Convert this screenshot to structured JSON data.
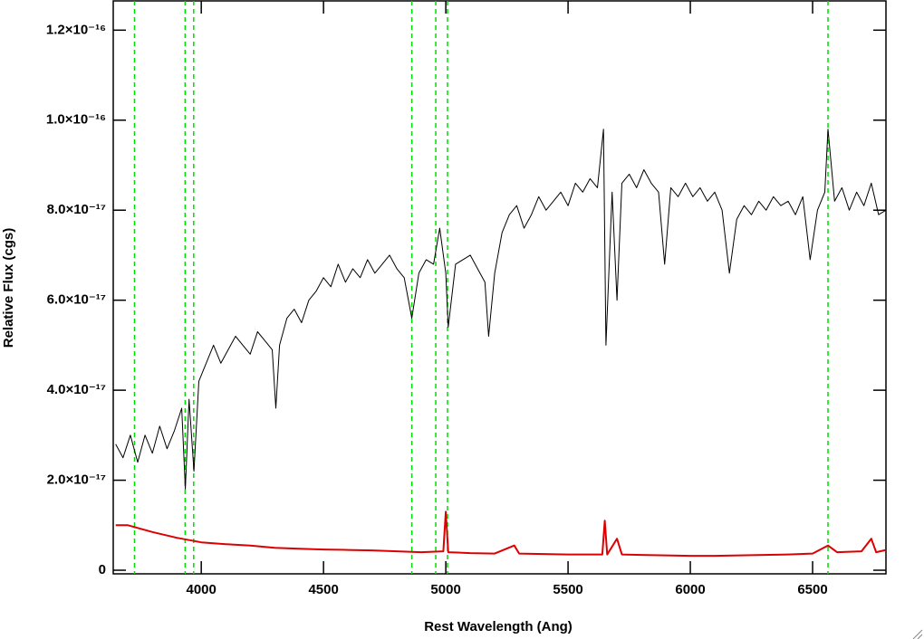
{
  "chart_data": {
    "type": "line",
    "x_label": "Rest Wavelength (Ang)",
    "y_label": "Relative Flux (cgs)",
    "xlim": [
      3640,
      6800
    ],
    "ylim": [
      -8e-19,
      1.265e-16
    ],
    "xticks": [
      4000,
      4500,
      5000,
      5500,
      6000,
      6500
    ],
    "yticks": [
      0,
      {
        "value": 2e-17,
        "label": "2.0×10⁻¹⁷"
      },
      {
        "value": 4e-17,
        "label": "4.0×10⁻¹⁷"
      },
      {
        "value": 6e-17,
        "label": "6.0×10⁻¹⁷"
      },
      {
        "value": 8e-17,
        "label": "8.0×10⁻¹⁷"
      },
      {
        "value": 1e-16,
        "label": "1.0×10⁻¹⁶"
      },
      {
        "value": 1.2e-16,
        "label": "1.2×10⁻¹⁶"
      }
    ],
    "vlines": [
      3727,
      3934,
      3969,
      4861,
      4959,
      5007,
      6563
    ],
    "vline_color": "#00dd00",
    "series": [
      {
        "color": "#000000",
        "width": 1,
        "x": [
          3650,
          3680,
          3710,
          3740,
          3770,
          3800,
          3830,
          3860,
          3890,
          3920,
          3935,
          3950,
          3970,
          3990,
          4020,
          4050,
          4080,
          4110,
          4140,
          4170,
          4200,
          4230,
          4260,
          4290,
          4305,
          4320,
          4350,
          4380,
          4410,
          4440,
          4470,
          4500,
          4530,
          4560,
          4590,
          4620,
          4650,
          4680,
          4710,
          4740,
          4770,
          4800,
          4830,
          4861,
          4890,
          4920,
          4950,
          4975,
          5000,
          5010,
          5040,
          5070,
          5100,
          5130,
          5160,
          5175,
          5200,
          5230,
          5260,
          5290,
          5320,
          5350,
          5380,
          5410,
          5440,
          5470,
          5500,
          5530,
          5560,
          5590,
          5620,
          5645,
          5655,
          5680,
          5700,
          5720,
          5750,
          5780,
          5810,
          5840,
          5870,
          5895,
          5920,
          5950,
          5980,
          6010,
          6040,
          6070,
          6100,
          6130,
          6160,
          6190,
          6220,
          6250,
          6280,
          6310,
          6340,
          6370,
          6400,
          6430,
          6460,
          6490,
          6520,
          6550,
          6563,
          6590,
          6620,
          6650,
          6680,
          6710,
          6740,
          6770,
          6800
        ],
        "values": [
          2.8e-17,
          2.5e-17,
          3e-17,
          2.4e-17,
          3e-17,
          2.6e-17,
          3.2e-17,
          2.7e-17,
          3.1e-17,
          3.6e-17,
          1.8e-17,
          3.8e-17,
          2.2e-17,
          4.2e-17,
          4.6e-17,
          5e-17,
          4.6e-17,
          4.9e-17,
          5.2e-17,
          5e-17,
          4.8e-17,
          5.3e-17,
          5.1e-17,
          4.9e-17,
          3.6e-17,
          5e-17,
          5.6e-17,
          5.8e-17,
          5.5e-17,
          6e-17,
          6.2e-17,
          6.5e-17,
          6.3e-17,
          6.8e-17,
          6.4e-17,
          6.7e-17,
          6.5e-17,
          6.9e-17,
          6.6e-17,
          6.8e-17,
          7e-17,
          6.7e-17,
          6.5e-17,
          5.6e-17,
          6.6e-17,
          6.9e-17,
          6.8e-17,
          7.6e-17,
          6.6e-17,
          5.4e-17,
          6.8e-17,
          6.9e-17,
          7e-17,
          6.7e-17,
          6.4e-17,
          5.2e-17,
          6.6e-17,
          7.5e-17,
          7.9e-17,
          8.1e-17,
          7.6e-17,
          7.9e-17,
          8.3e-17,
          8e-17,
          8.2e-17,
          8.4e-17,
          8.1e-17,
          8.6e-17,
          8.4e-17,
          8.7e-17,
          8.5e-17,
          9.8e-17,
          5e-17,
          8.4e-17,
          6e-17,
          8.6e-17,
          8.8e-17,
          8.5e-17,
          8.9e-17,
          8.6e-17,
          8.4e-17,
          6.8e-17,
          8.5e-17,
          8.3e-17,
          8.6e-17,
          8.3e-17,
          8.5e-17,
          8.2e-17,
          8.4e-17,
          8e-17,
          6.6e-17,
          7.8e-17,
          8.1e-17,
          7.9e-17,
          8.2e-17,
          8e-17,
          8.3e-17,
          8.1e-17,
          8.2e-17,
          7.9e-17,
          8.3e-17,
          6.9e-17,
          8e-17,
          8.4e-17,
          9.8e-17,
          8.2e-17,
          8.5e-17,
          8e-17,
          8.4e-17,
          8.1e-17,
          8.6e-17,
          7.9e-17,
          8e-17
        ]
      },
      {
        "color": "#dd0000",
        "width": 2,
        "x": [
          3650,
          3700,
          3800,
          3900,
          4000,
          4100,
          4200,
          4300,
          4400,
          4500,
          4600,
          4700,
          4800,
          4900,
          4990,
          5000,
          5010,
          5100,
          5200,
          5280,
          5300,
          5400,
          5500,
          5600,
          5640,
          5650,
          5660,
          5700,
          5720,
          5800,
          5900,
          6000,
          6100,
          6200,
          6300,
          6400,
          6500,
          6563,
          6600,
          6700,
          6740,
          6760,
          6800
        ],
        "values": [
          1e-17,
          1e-17,
          8.5e-18,
          7.2e-18,
          6.2e-18,
          5.8e-18,
          5.5e-18,
          5e-18,
          4.8e-18,
          4.6e-18,
          4.5e-18,
          4.4e-18,
          4.2e-18,
          4e-18,
          4.2e-18,
          1.3e-17,
          4e-18,
          3.8e-18,
          3.7e-18,
          5.5e-18,
          3.7e-18,
          3.6e-18,
          3.5e-18,
          3.5e-18,
          3.5e-18,
          1.1e-17,
          3.5e-18,
          7e-18,
          3.5e-18,
          3.4e-18,
          3.3e-18,
          3.2e-18,
          3.2e-18,
          3.3e-18,
          3.4e-18,
          3.5e-18,
          3.7e-18,
          5.5e-18,
          4e-18,
          4.2e-18,
          7e-18,
          4e-18,
          4.5e-18
        ]
      }
    ]
  }
}
